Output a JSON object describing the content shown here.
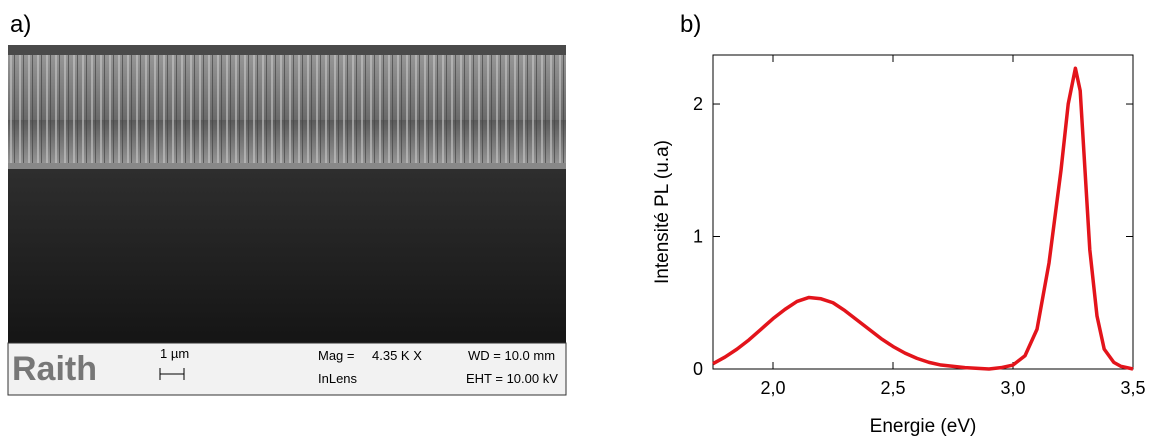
{
  "panel_a": {
    "label": "a)",
    "logo": "Raith",
    "scale_bar": "1 µm",
    "mag_label": "Mag =",
    "mag_value": "4.35 K X",
    "detector": "InLens",
    "wd": "WD = 10.0 mm",
    "eht": "EHT = 10.00 kV"
  },
  "chart_data": {
    "type": "line",
    "panel_label": "b)",
    "xlabel": "Energie (eV)",
    "ylabel": "Intensité PL (u.a)",
    "x": [
      1.75,
      1.8,
      1.85,
      1.9,
      1.95,
      2.0,
      2.05,
      2.1,
      2.15,
      2.2,
      2.25,
      2.3,
      2.35,
      2.4,
      2.45,
      2.5,
      2.55,
      2.6,
      2.65,
      2.7,
      2.8,
      2.9,
      2.95,
      3.0,
      3.05,
      3.1,
      3.15,
      3.2,
      3.23,
      3.26,
      3.28,
      3.3,
      3.32,
      3.35,
      3.38,
      3.42,
      3.45,
      3.5
    ],
    "series": [
      {
        "color": "#e3141b",
        "values": [
          0.04,
          0.09,
          0.15,
          0.22,
          0.3,
          0.38,
          0.45,
          0.51,
          0.54,
          0.53,
          0.5,
          0.44,
          0.37,
          0.3,
          0.23,
          0.17,
          0.12,
          0.08,
          0.05,
          0.03,
          0.01,
          0.0,
          0.01,
          0.03,
          0.1,
          0.3,
          0.8,
          1.5,
          2.0,
          2.27,
          2.1,
          1.5,
          0.9,
          0.4,
          0.15,
          0.05,
          0.02,
          0.0
        ]
      }
    ],
    "xlim": [
      1.75,
      3.5
    ],
    "ylim": [
      0,
      2.37
    ],
    "xticks": [
      {
        "value": 2.0,
        "label": "2,0"
      },
      {
        "value": 2.5,
        "label": "2,5"
      },
      {
        "value": 3.0,
        "label": "3,0"
      },
      {
        "value": 3.5,
        "label": "3,5"
      }
    ],
    "yticks": [
      0,
      1,
      2
    ]
  }
}
